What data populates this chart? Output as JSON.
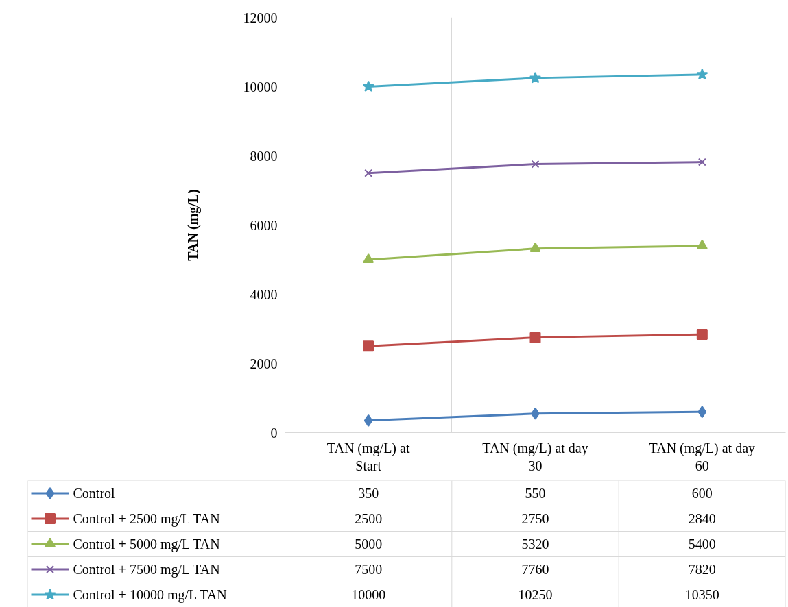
{
  "chart_data": {
    "type": "line",
    "ylabel": "TAN (mg/L)",
    "categories": [
      "TAN (mg/L) at Start",
      "TAN (mg/L) at day 30",
      "TAN (mg/L) at day 60"
    ],
    "ylim": [
      0,
      12000
    ],
    "yticks": [
      0,
      2000,
      4000,
      6000,
      8000,
      10000,
      12000
    ],
    "grid": "x",
    "legend": "bottom",
    "data_labels": true,
    "series": [
      {
        "name": "Control",
        "color": "#4a7ebb",
        "marker": "diamond",
        "values": [
          350,
          550,
          600
        ]
      },
      {
        "name": "Control + 2500 mg/L TAN",
        "color": "#be4b48",
        "marker": "square",
        "values": [
          2500,
          2750,
          2840
        ]
      },
      {
        "name": "Control + 5000 mg/L TAN",
        "color": "#98b954",
        "marker": "triangle",
        "values": [
          5000,
          5320,
          5400
        ]
      },
      {
        "name": "Control + 7500 mg/L TAN",
        "color": "#7d60a0",
        "marker": "cross",
        "values": [
          7500,
          7760,
          7820
        ]
      },
      {
        "name": "Control + 10000 mg/L TAN",
        "color": "#46aac5",
        "marker": "star",
        "values": [
          10000,
          10250,
          10350
        ]
      }
    ]
  }
}
